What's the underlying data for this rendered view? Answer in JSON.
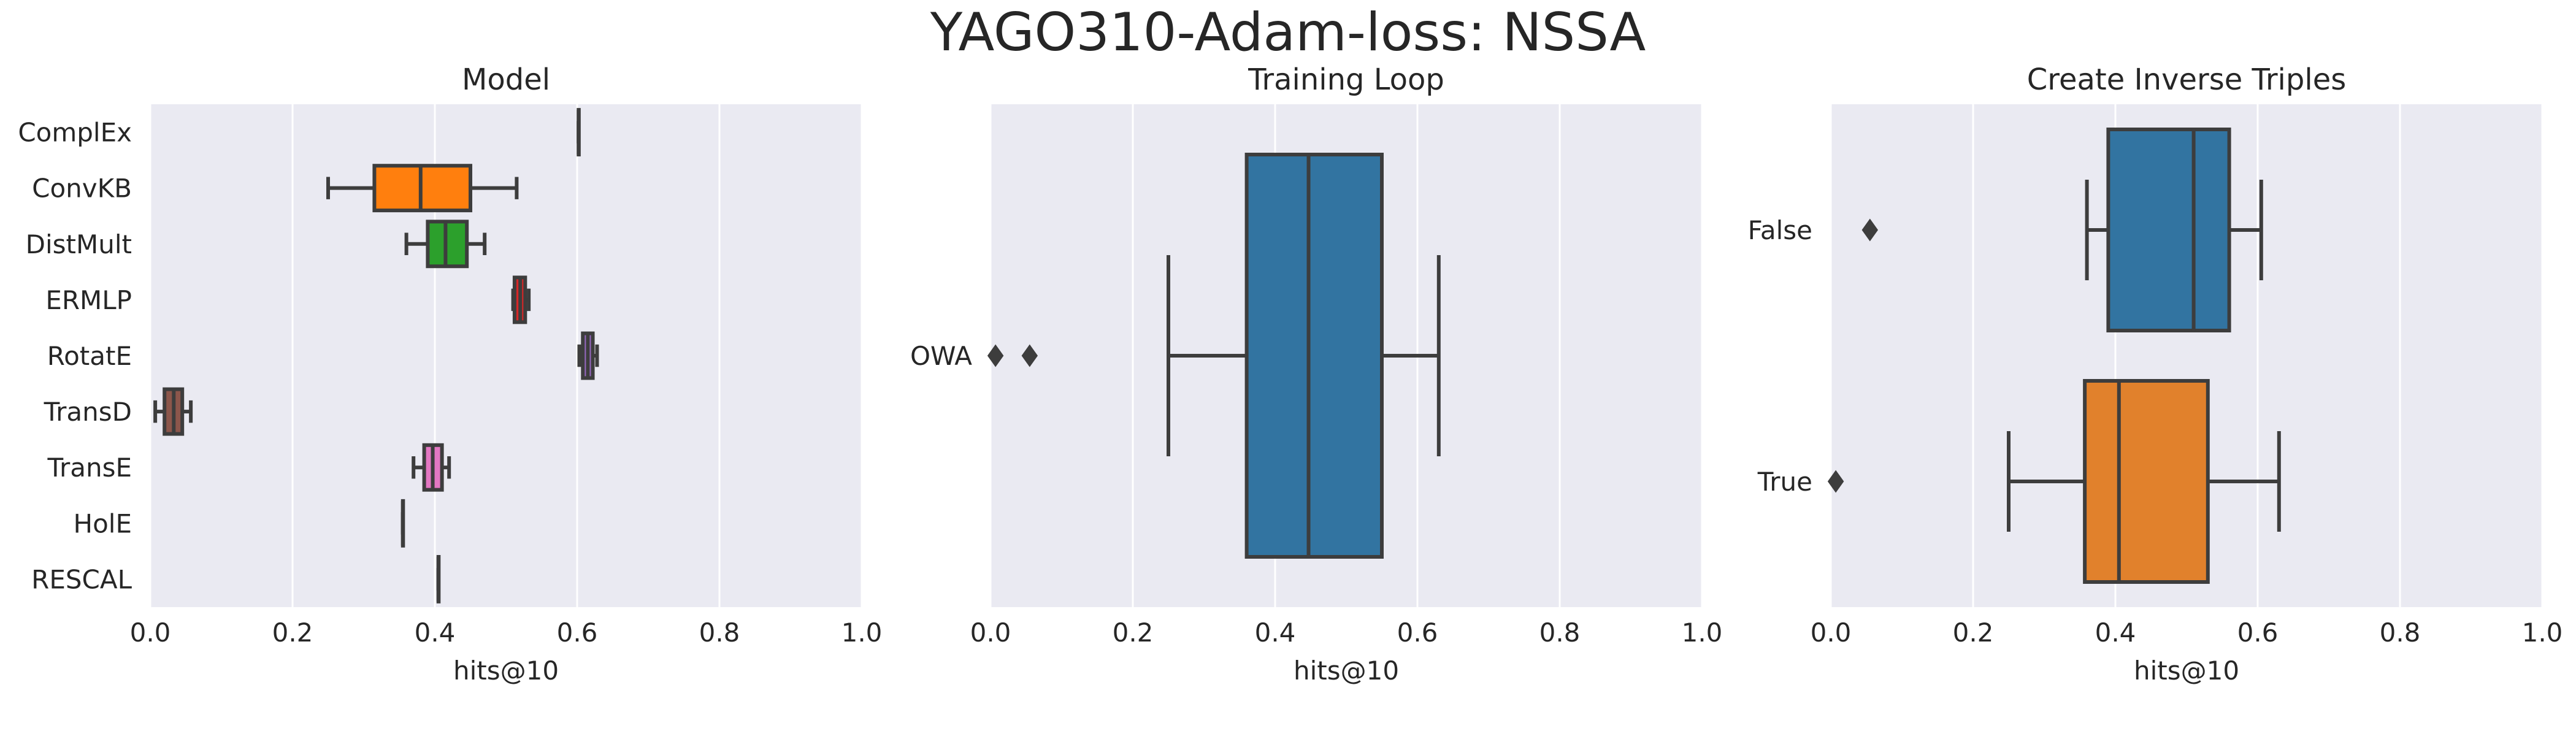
{
  "suptitle": "YAGO310-Adam-loss: NSSA",
  "style": {
    "panel_bg": "#eaeaf2",
    "grid_color": "#ffffff",
    "line_color": "#3d3d3d"
  },
  "chart_data": [
    {
      "type": "box",
      "orientation": "horizontal",
      "title": "Model",
      "xlabel": "hits@10",
      "xlim": [
        0,
        1
      ],
      "xticks": [
        "0.0",
        "0.2",
        "0.4",
        "0.6",
        "0.8",
        "1.0"
      ],
      "grid": "vertical",
      "categories": [
        "ComplEx",
        "ConvKB",
        "DistMult",
        "ERMLP",
        "RotatE",
        "TransD",
        "TransE",
        "HolE",
        "RESCAL"
      ],
      "boxes": [
        {
          "label": "ComplEx",
          "color": "#1f77b4",
          "whislo": 0.602,
          "q1": 0.602,
          "med": 0.602,
          "q3": 0.602,
          "whishi": 0.602,
          "fliers": []
        },
        {
          "label": "ConvKB",
          "color": "#ff7f0e",
          "whislo": 0.25,
          "q1": 0.315,
          "med": 0.38,
          "q3": 0.45,
          "whishi": 0.515,
          "fliers": []
        },
        {
          "label": "DistMult",
          "color": "#2ca02c",
          "whislo": 0.36,
          "q1": 0.39,
          "med": 0.415,
          "q3": 0.445,
          "whishi": 0.47,
          "fliers": []
        },
        {
          "label": "ERMLP",
          "color": "#d62728",
          "whislo": 0.51,
          "q1": 0.512,
          "med": 0.52,
          "q3": 0.527,
          "whishi": 0.532,
          "fliers": []
        },
        {
          "label": "RotatE",
          "color": "#9467bd",
          "whislo": 0.603,
          "q1": 0.608,
          "med": 0.615,
          "q3": 0.622,
          "whishi": 0.628,
          "fliers": []
        },
        {
          "label": "TransD",
          "color": "#8c564b",
          "whislo": 0.007,
          "q1": 0.02,
          "med": 0.033,
          "q3": 0.045,
          "whishi": 0.057,
          "fliers": []
        },
        {
          "label": "TransE",
          "color": "#e377c2",
          "whislo": 0.37,
          "q1": 0.385,
          "med": 0.397,
          "q3": 0.41,
          "whishi": 0.42,
          "fliers": []
        },
        {
          "label": "HolE",
          "color": "#7f7f7f",
          "whislo": 0.355,
          "q1": 0.355,
          "med": 0.355,
          "q3": 0.355,
          "whishi": 0.355,
          "fliers": []
        },
        {
          "label": "RESCAL",
          "color": "#bcbd22",
          "whislo": 0.405,
          "q1": 0.405,
          "med": 0.405,
          "q3": 0.405,
          "whishi": 0.405,
          "fliers": []
        }
      ]
    },
    {
      "type": "box",
      "orientation": "horizontal",
      "title": "Training Loop",
      "xlabel": "hits@10",
      "xlim": [
        0,
        1
      ],
      "xticks": [
        "0.0",
        "0.2",
        "0.4",
        "0.6",
        "0.8",
        "1.0"
      ],
      "grid": "vertical",
      "categories": [
        "OWA"
      ],
      "boxes": [
        {
          "label": "OWA",
          "color": "#3274a1",
          "whislo": 0.25,
          "q1": 0.36,
          "med": 0.447,
          "q3": 0.55,
          "whishi": 0.63,
          "fliers": [
            0.007,
            0.055
          ]
        }
      ]
    },
    {
      "type": "box",
      "orientation": "horizontal",
      "title": "Create Inverse Triples",
      "xlabel": "hits@10",
      "xlim": [
        0,
        1
      ],
      "xticks": [
        "0.0",
        "0.2",
        "0.4",
        "0.6",
        "0.8",
        "1.0"
      ],
      "grid": "vertical",
      "categories": [
        "False",
        "True"
      ],
      "boxes": [
        {
          "label": "False",
          "color": "#3274a1",
          "whislo": 0.36,
          "q1": 0.39,
          "med": 0.51,
          "q3": 0.56,
          "whishi": 0.605,
          "fliers": [
            0.055
          ]
        },
        {
          "label": "True",
          "color": "#e1812c",
          "whislo": 0.25,
          "q1": 0.357,
          "med": 0.405,
          "q3": 0.53,
          "whishi": 0.63,
          "fliers": [
            0.007
          ]
        }
      ]
    }
  ]
}
